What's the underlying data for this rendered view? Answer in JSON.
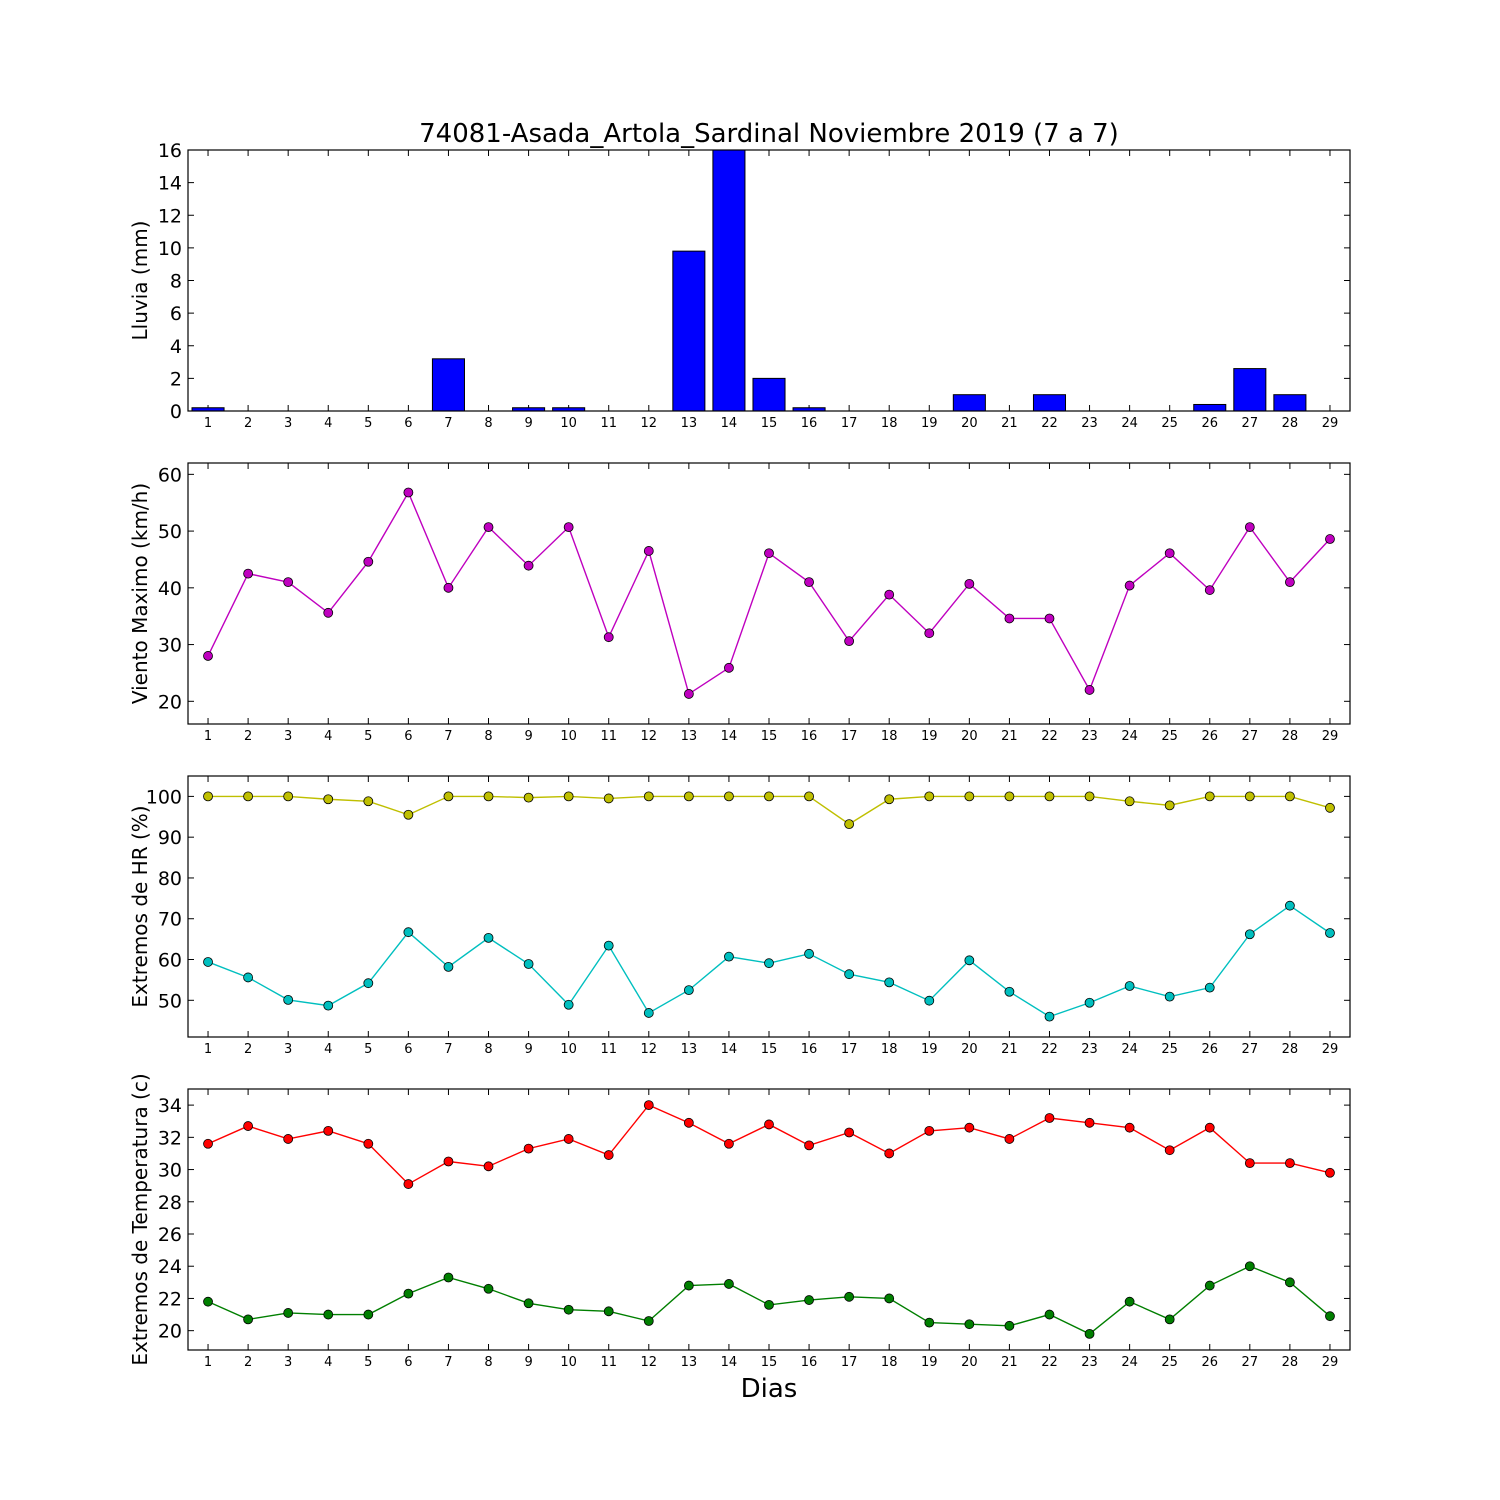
{
  "figure": {
    "title": "74081-Asada_Artola_Sardinal Noviembre 2019  (7 a 7)",
    "xlabel": "Dias"
  },
  "chart_data": [
    {
      "type": "bar",
      "ylabel": "Lluvia (mm)",
      "ylim": [
        0,
        16
      ],
      "yticks": [
        0,
        2,
        4,
        6,
        8,
        10,
        12,
        14,
        16
      ],
      "categories": [
        1,
        2,
        3,
        4,
        5,
        6,
        7,
        8,
        9,
        10,
        11,
        12,
        13,
        14,
        15,
        16,
        17,
        18,
        19,
        20,
        21,
        22,
        23,
        24,
        25,
        26,
        27,
        28,
        29
      ],
      "series": [
        {
          "color": "#0000ff",
          "values": [
            0.2,
            0,
            0,
            0,
            0,
            0,
            3.2,
            0,
            0.2,
            0.2,
            0,
            0,
            9.8,
            16.2,
            2.0,
            0.2,
            0,
            0,
            0,
            1.0,
            0,
            1.0,
            0,
            0,
            0,
            0.4,
            2.6,
            1.0,
            0
          ]
        }
      ]
    },
    {
      "type": "line",
      "ylabel": "Viento Maximo (km/h)",
      "ylim": [
        16,
        62
      ],
      "yticks": [
        20,
        30,
        40,
        50,
        60
      ],
      "categories": [
        1,
        2,
        3,
        4,
        5,
        6,
        7,
        8,
        9,
        10,
        11,
        12,
        13,
        14,
        15,
        16,
        17,
        18,
        19,
        20,
        21,
        22,
        23,
        24,
        25,
        26,
        27,
        28,
        29
      ],
      "series": [
        {
          "color": "#bf00bf",
          "values": [
            28.0,
            42.5,
            41.0,
            35.6,
            44.6,
            56.8,
            40.0,
            50.7,
            43.9,
            50.7,
            31.3,
            46.5,
            21.3,
            25.9,
            46.1,
            41.0,
            30.6,
            38.8,
            32.0,
            40.7,
            34.6,
            34.6,
            22.0,
            40.4,
            46.1,
            39.6,
            50.7,
            41.0,
            48.6
          ]
        }
      ]
    },
    {
      "type": "line",
      "ylabel": "Extremos de HR (%)",
      "ylim": [
        41,
        105
      ],
      "yticks": [
        50,
        60,
        70,
        80,
        90,
        100
      ],
      "categories": [
        1,
        2,
        3,
        4,
        5,
        6,
        7,
        8,
        9,
        10,
        11,
        12,
        13,
        14,
        15,
        16,
        17,
        18,
        19,
        20,
        21,
        22,
        23,
        24,
        25,
        26,
        27,
        28,
        29
      ],
      "series": [
        {
          "color": "#bfbf00",
          "values": [
            100,
            100,
            100,
            99.3,
            98.8,
            95.5,
            100,
            100,
            99.7,
            100,
            99.5,
            100,
            100,
            100,
            100,
            100,
            93.2,
            99.3,
            100,
            100,
            100,
            100,
            100,
            98.8,
            97.8,
            100,
            100,
            100,
            97.2
          ]
        },
        {
          "color": "#00bfbf",
          "values": [
            59.4,
            55.6,
            50.1,
            48.7,
            54.2,
            66.7,
            58.2,
            65.3,
            58.9,
            48.9,
            63.4,
            46.9,
            52.5,
            60.7,
            59.1,
            61.4,
            56.4,
            54.4,
            49.9,
            59.8,
            52.1,
            46.0,
            49.4,
            53.5,
            50.9,
            53.1,
            66.2,
            73.2,
            66.5
          ]
        }
      ]
    },
    {
      "type": "line",
      "ylabel": "Extremos de Temperatura (c)",
      "ylim": [
        18.8,
        35
      ],
      "yticks": [
        20,
        22,
        24,
        26,
        28,
        30,
        32,
        34
      ],
      "categories": [
        1,
        2,
        3,
        4,
        5,
        6,
        7,
        8,
        9,
        10,
        11,
        12,
        13,
        14,
        15,
        16,
        17,
        18,
        19,
        20,
        21,
        22,
        23,
        24,
        25,
        26,
        27,
        28,
        29
      ],
      "series": [
        {
          "color": "#ff0000",
          "values": [
            31.6,
            32.7,
            31.9,
            32.4,
            31.6,
            29.1,
            30.5,
            30.2,
            31.3,
            31.9,
            30.9,
            34.0,
            32.9,
            31.6,
            32.8,
            31.5,
            32.3,
            31.0,
            32.4,
            32.6,
            31.9,
            33.2,
            32.9,
            32.6,
            31.2,
            32.6,
            30.4,
            30.4,
            29.8
          ]
        },
        {
          "color": "#007f00",
          "values": [
            21.8,
            20.7,
            21.1,
            21.0,
            21.0,
            22.3,
            23.3,
            22.6,
            21.7,
            21.3,
            21.2,
            20.6,
            22.8,
            22.9,
            21.6,
            21.9,
            22.1,
            22.0,
            20.5,
            20.4,
            20.3,
            21.0,
            19.8,
            21.8,
            20.7,
            22.8,
            24.0,
            23.0,
            20.9
          ]
        }
      ]
    }
  ]
}
